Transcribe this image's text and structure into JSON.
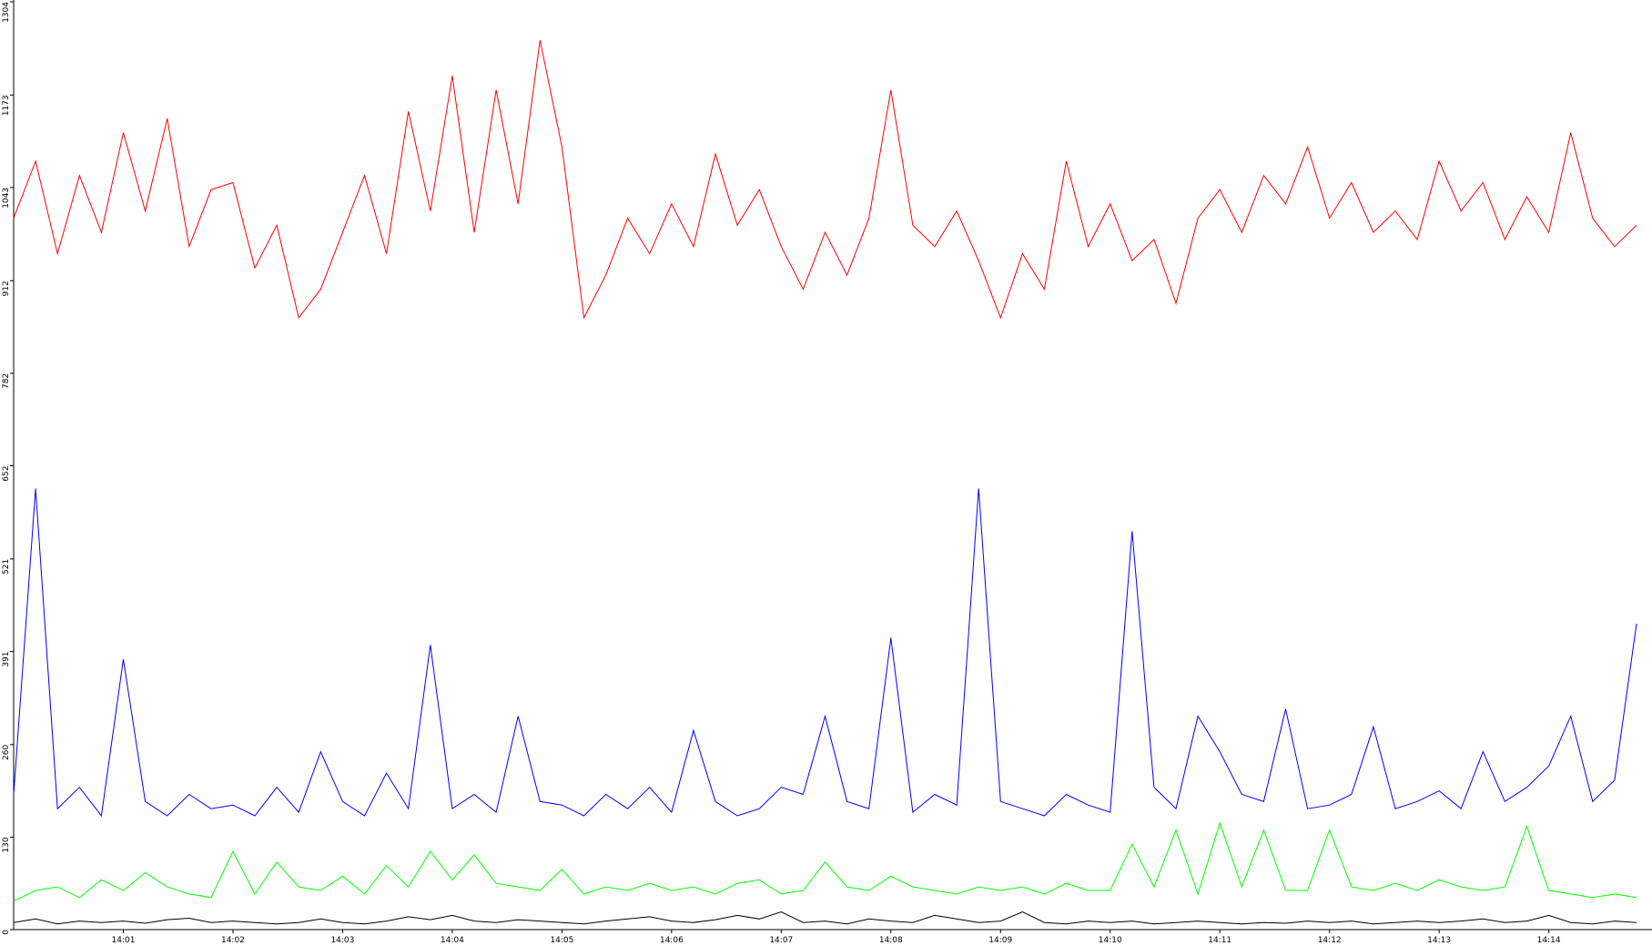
{
  "chart_data": {
    "type": "line",
    "categories": [
      null,
      null,
      null,
      null,
      null,
      "14:01",
      null,
      null,
      null,
      null,
      "14:02",
      null,
      null,
      null,
      null,
      "14:03",
      null,
      null,
      null,
      null,
      "14:04",
      null,
      null,
      null,
      null,
      "14:05",
      null,
      null,
      null,
      null,
      "14:06",
      null,
      null,
      null,
      null,
      "14:07",
      null,
      null,
      null,
      null,
      "14:08",
      null,
      null,
      null,
      null,
      "14:09",
      null,
      null,
      null,
      null,
      "14:10",
      null,
      null,
      null,
      null,
      "14:11",
      null,
      null,
      null,
      null,
      "14:12",
      null,
      null,
      null,
      null,
      "14:13",
      null,
      null,
      null,
      null,
      "14:14",
      null,
      null,
      null,
      null
    ],
    "series": [
      {
        "color": "#ff0000",
        "values": [
          1000,
          1080,
          950,
          1060,
          980,
          1120,
          1010,
          1140,
          960,
          1040,
          1050,
          930,
          990,
          860,
          900,
          980,
          1060,
          950,
          1150,
          1010,
          1200,
          980,
          1180,
          1020,
          1250,
          1100,
          860,
          920,
          1000,
          950,
          1020,
          960,
          1090,
          990,
          1040,
          960,
          900,
          980,
          920,
          1000,
          1180,
          990,
          960,
          1010,
          940,
          860,
          950,
          900,
          1080,
          960,
          1020,
          940,
          970,
          880,
          1000,
          1040,
          980,
          1060,
          1020,
          1100,
          1000,
          1050,
          980,
          1010,
          970,
          1080,
          1010,
          1050,
          970,
          1030,
          980,
          1120,
          1000,
          960,
          990
        ]
      },
      {
        "color": "#0000ff",
        "values": [
          190,
          620,
          170,
          200,
          160,
          380,
          180,
          160,
          190,
          170,
          175,
          160,
          200,
          165,
          250,
          180,
          160,
          220,
          170,
          400,
          170,
          190,
          165,
          300,
          180,
          175,
          160,
          190,
          170,
          200,
          165,
          280,
          180,
          160,
          170,
          200,
          190,
          300,
          180,
          170,
          410,
          165,
          190,
          175,
          620,
          180,
          170,
          160,
          190,
          175,
          165,
          560,
          200,
          170,
          300,
          250,
          190,
          180,
          310,
          170,
          175,
          190,
          285,
          170,
          180,
          195,
          170,
          250,
          180,
          200,
          230,
          300,
          180,
          210,
          430
        ]
      },
      {
        "color": "#00ff00",
        "values": [
          40,
          55,
          60,
          45,
          70,
          55,
          80,
          60,
          50,
          45,
          110,
          50,
          95,
          60,
          55,
          75,
          50,
          90,
          60,
          110,
          70,
          105,
          65,
          60,
          55,
          85,
          50,
          60,
          55,
          65,
          55,
          60,
          50,
          65,
          70,
          50,
          55,
          95,
          60,
          55,
          75,
          60,
          55,
          50,
          60,
          55,
          60,
          50,
          65,
          55,
          55,
          120,
          60,
          140,
          50,
          150,
          60,
          140,
          55,
          55,
          140,
          60,
          55,
          65,
          55,
          70,
          60,
          55,
          60,
          145,
          55,
          50,
          45,
          50,
          45
        ]
      },
      {
        "color": "#000000",
        "values": [
          10,
          15,
          8,
          12,
          10,
          12,
          9,
          14,
          16,
          10,
          12,
          10,
          8,
          10,
          15,
          10,
          8,
          12,
          18,
          14,
          20,
          12,
          10,
          14,
          12,
          10,
          8,
          12,
          15,
          18,
          12,
          10,
          14,
          20,
          15,
          25,
          10,
          12,
          8,
          15,
          12,
          10,
          20,
          15,
          10,
          12,
          25,
          10,
          8,
          12,
          10,
          12,
          8,
          10,
          12,
          10,
          8,
          10,
          9,
          12,
          10,
          12,
          8,
          10,
          12,
          10,
          12,
          15,
          10,
          12,
          20,
          10,
          8,
          12,
          10
        ]
      }
    ],
    "ylim": [
      0,
      1304
    ],
    "yticks": [
      0,
      130,
      260,
      391,
      521,
      652,
      782,
      912,
      1043,
      1173,
      1304
    ]
  }
}
